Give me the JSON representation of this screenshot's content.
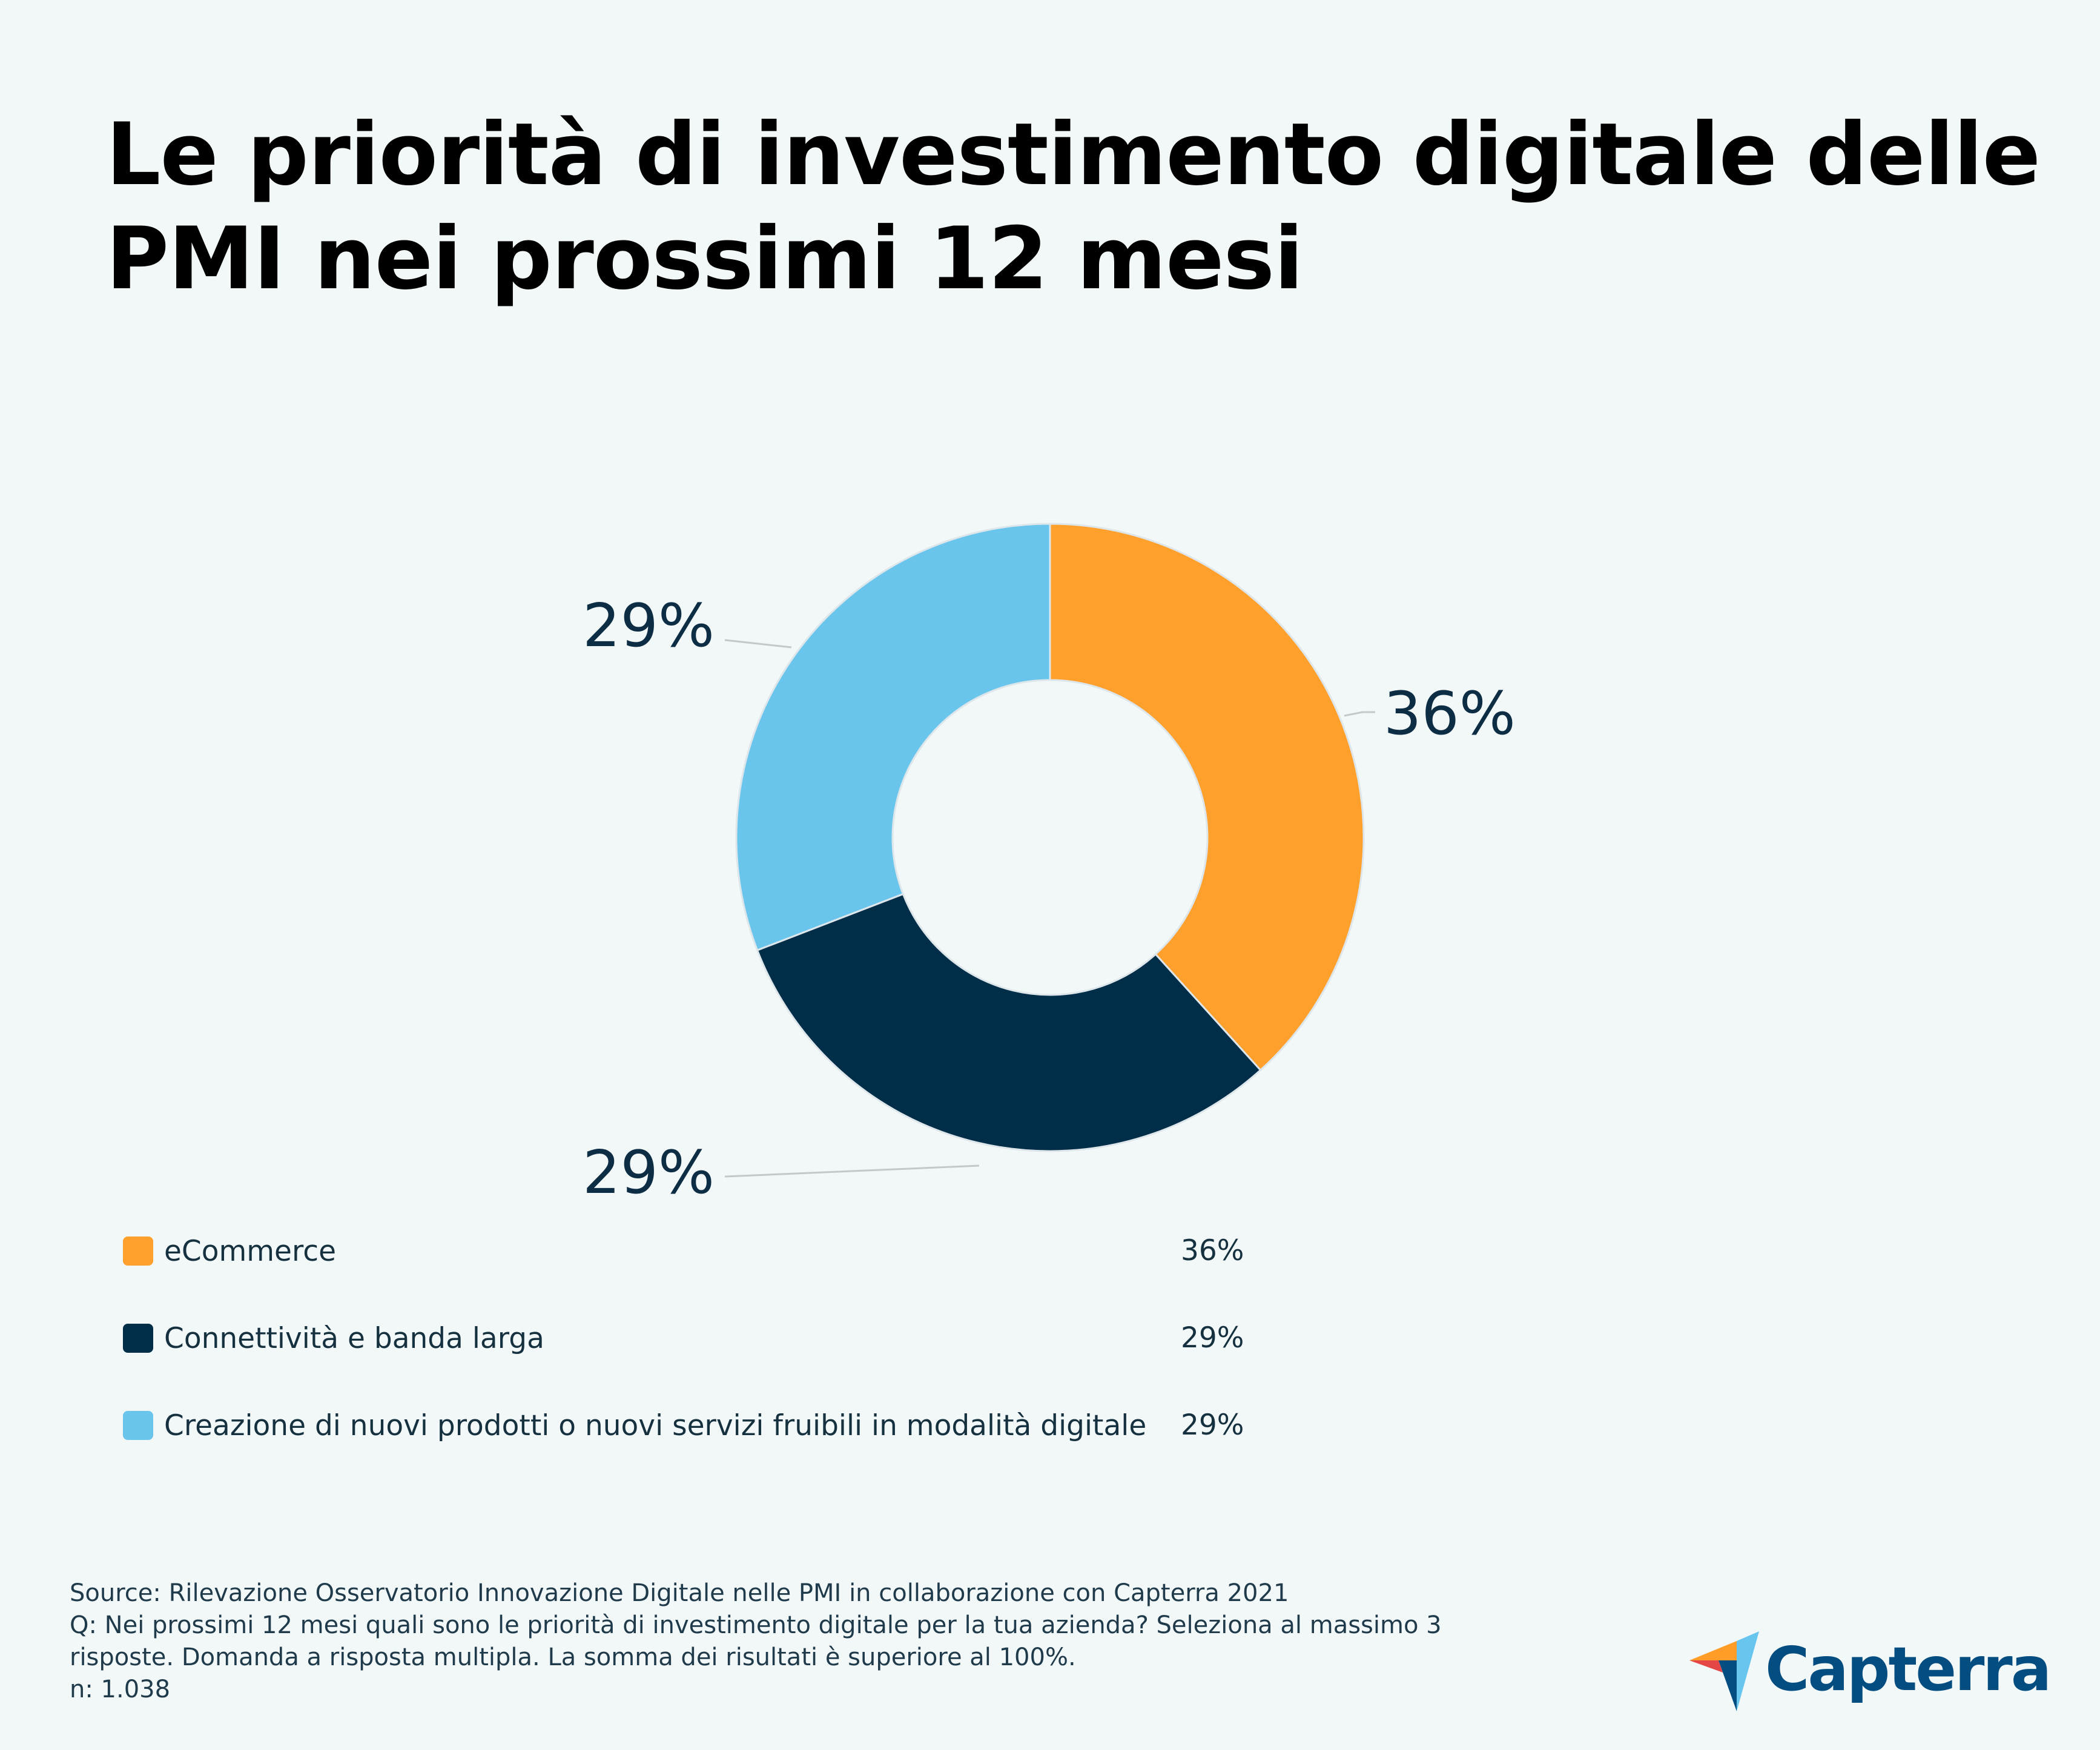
{
  "title": "Le priorità di investimento digitale delle PMI nei prossimi 12 mesi",
  "chart_data": {
    "type": "pie",
    "subtype": "donut",
    "title": "Le priorità di investimento digitale delle PMI nei prossimi 12 mesi",
    "categories": [
      "eCommerce",
      "Connettività e banda larga",
      "Creazione di nuovi prodotti o nuovi servizi fruibili in modalità digitale"
    ],
    "values": [
      36,
      29,
      29
    ],
    "labels": [
      "36%",
      "29%",
      "29%"
    ],
    "colors": [
      "#ff9f2c",
      "#002d47",
      "#6ac5ed"
    ],
    "legend": "bottom-left"
  },
  "legend": [
    {
      "label": "eCommerce",
      "value": "36%",
      "color": "#ff9f2c"
    },
    {
      "label": "Connettività e banda larga",
      "value": "29%",
      "color": "#002d47"
    },
    {
      "label": "Creazione di nuovi prodotti o nuovi servizi fruibili in modalità digitale",
      "value": "29%",
      "color": "#6ac5ed"
    }
  ],
  "footer": {
    "source": "Source: Rilevazione Osservatorio Innovazione Digitale nelle PMI in collaborazione con Capterra 2021",
    "question_1": "Q: Nei prossimi 12 mesi quali sono le priorità di investimento digitale per la tua azienda? Seleziona al massimo 3",
    "question_2": "risposte. Domanda a risposta multipla. La somma dei risultati è superiore al 100%.",
    "n": "n: 1.038"
  },
  "logo": {
    "text": "Capterra",
    "colors": [
      "#ff9d28",
      "#68c5ed",
      "#044d80",
      "#e54747"
    ]
  }
}
